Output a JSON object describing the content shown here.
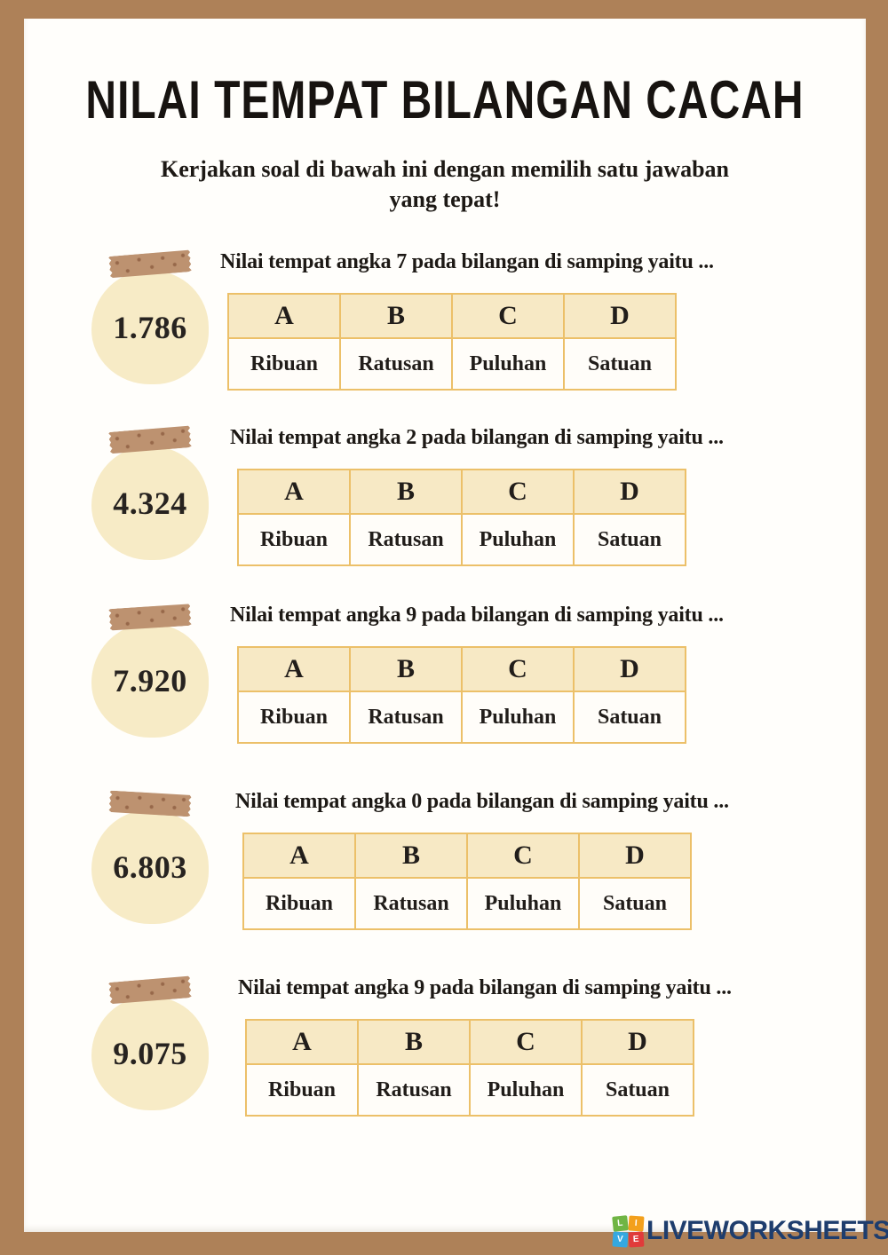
{
  "header": {
    "title": "NILAI TEMPAT BILANGAN CACAH",
    "subtitle_line1": "Kerjakan soal di bawah ini dengan memilih satu jawaban",
    "subtitle_line2": "yang tepat!"
  },
  "option_letters": [
    "A",
    "B",
    "C",
    "D"
  ],
  "questions": [
    {
      "number": "1.786",
      "prompt": "Nilai tempat angka 7 pada bilangan di samping yaitu ...",
      "choices": [
        "Ribuan",
        "Ratusan",
        "Puluhan",
        "Satuan"
      ]
    },
    {
      "number": "4.324",
      "prompt": "Nilai tempat angka 2 pada bilangan di samping yaitu ...",
      "choices": [
        "Ribuan",
        "Ratusan",
        "Puluhan",
        "Satuan"
      ]
    },
    {
      "number": "7.920",
      "prompt": "Nilai tempat angka 9 pada bilangan di samping yaitu ...",
      "choices": [
        "Ribuan",
        "Ratusan",
        "Puluhan",
        "Satuan"
      ]
    },
    {
      "number": "6.803",
      "prompt": "Nilai tempat angka 0 pada bilangan di samping yaitu ...",
      "choices": [
        "Ribuan",
        "Ratusan",
        "Puluhan",
        "Satuan"
      ]
    },
    {
      "number": "9.075",
      "prompt": "Nilai tempat angka 9 pada bilangan di samping yaitu ...",
      "choices": [
        "Ribuan",
        "Ratusan",
        "Puluhan",
        "Satuan"
      ]
    }
  ],
  "footer": {
    "brand": "LIVEWORKSHEETS",
    "logo_blocks": [
      {
        "letter": "L",
        "color": "#70b544"
      },
      {
        "letter": "I",
        "color": "#f3a01c"
      },
      {
        "letter": "V",
        "color": "#35a8e0"
      },
      {
        "letter": "E",
        "color": "#e03a3a"
      }
    ]
  },
  "colors": {
    "frame_brown": "#ae8158",
    "tape_brown": "#bd9270",
    "tape_speckle": "#97684a",
    "bubble_cream": "#f7ebc6",
    "table_border_gold": "#ecc069",
    "table_header_cream": "#f7e9c5",
    "text_dark": "#1d1915",
    "brand_navy": "#1e3d6d"
  }
}
